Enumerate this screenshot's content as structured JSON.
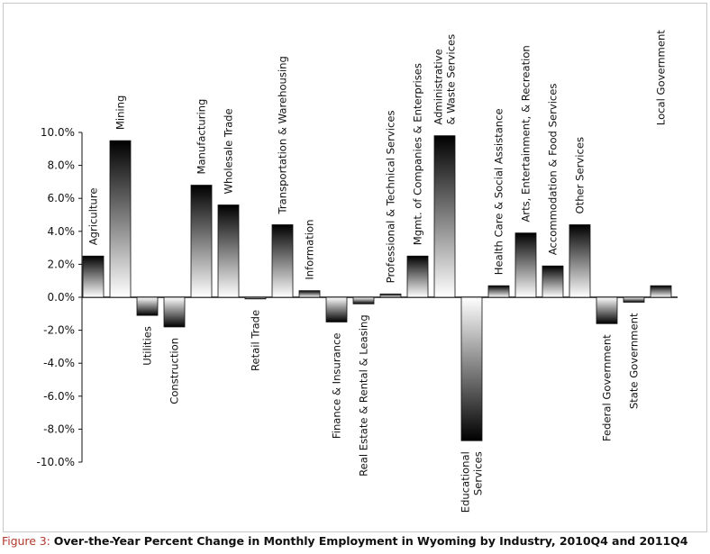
{
  "caption": {
    "label": "Figure 3:",
    "text": "Over-the-Year Percent Change in Monthly Employment in Wyoming by Industry, 2010Q4 and 2011Q4"
  },
  "chart_data": {
    "type": "bar",
    "title": "",
    "xlabel": "",
    "ylabel": "",
    "ylim": [
      -10.0,
      10.0
    ],
    "y_ticks": [
      "10.0%",
      "8.0%",
      "6.0%",
      "4.0%",
      "2.0%",
      "0.0%",
      "-2.0%",
      "-4.0%",
      "-6.0%",
      "-8.0%",
      "-10.0%"
    ],
    "grid": false,
    "legend": "none",
    "categories": [
      "Agriculture",
      "Mining",
      "Utilities",
      "Construction",
      "Manufacturing",
      "Wholesale Trade",
      "Retail Trade",
      "Transportation & Warehousing",
      "Information",
      "Finance & Insurance",
      "Real Estate & Rental & Leasing",
      "Professional & Technical Services",
      "Mgmt. of Companies & Enterprises",
      "Administrative & Waste Services",
      "Educational Services",
      "Health Care & Social Assistance",
      "Arts, Entertainment, & Recreation",
      "Accommodation & Food Services",
      "Other Services",
      "Federal Government",
      "State Government",
      "Local Government"
    ],
    "values": [
      2.5,
      9.5,
      -1.1,
      -1.8,
      6.8,
      5.6,
      -0.1,
      4.4,
      0.4,
      -1.5,
      -0.4,
      0.2,
      2.5,
      9.8,
      -8.7,
      0.7,
      3.9,
      1.9,
      4.4,
      -1.6,
      -0.3,
      0.7
    ]
  }
}
